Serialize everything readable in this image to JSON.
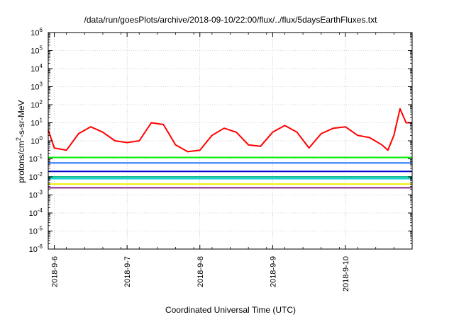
{
  "chart_data": {
    "type": "line",
    "title": "/data/run/goesPlots/archive/2018-09-10/22:00/flux/../flux/5daysEarthFluxes.txt",
    "xlabel": "Coordinated Universal Time (UTC)",
    "ylabel": {
      "base": "protons/cm",
      "sup": "2",
      "rest": "-s-sr-MeV"
    },
    "yscale": "log",
    "ylim": [
      1e-06,
      1000000.0
    ],
    "y_ticks": [
      {
        "v": 1000000.0,
        "exp": "6"
      },
      {
        "v": 100000.0,
        "exp": "5"
      },
      {
        "v": 10000.0,
        "exp": "4"
      },
      {
        "v": 1000.0,
        "exp": "3"
      },
      {
        "v": 100.0,
        "exp": "2"
      },
      {
        "v": 10.0,
        "exp": "1"
      },
      {
        "v": 1.0,
        "exp": "0"
      },
      {
        "v": 0.1,
        "exp": "-1"
      },
      {
        "v": 0.01,
        "exp": "-2"
      },
      {
        "v": 0.001,
        "exp": "-3"
      },
      {
        "v": 0.0001,
        "exp": "-4"
      },
      {
        "v": 1e-05,
        "exp": "-5"
      },
      {
        "v": 1e-06,
        "exp": "-6"
      }
    ],
    "y_tick_base": "10",
    "xlim": [
      "2018-09-05T22:00",
      "2018-09-10T22:00"
    ],
    "x_ticks": [
      {
        "t": "2018-09-06T00:00",
        "label": "2018-9-6"
      },
      {
        "t": "2018-09-07T00:00",
        "label": "2018-9-7"
      },
      {
        "t": "2018-09-08T00:00",
        "label": "2018-9-8"
      },
      {
        "t": "2018-09-09T00:00",
        "label": "2018-9-9"
      },
      {
        "t": "2018-09-10T00:00",
        "label": "2018-9-10"
      }
    ],
    "grid": true,
    "series": [
      {
        "color": "#ff0000",
        "x": [
          "2018-09-05T22:00",
          "2018-09-06T00:00",
          "2018-09-06T04:00",
          "2018-09-06T08:00",
          "2018-09-06T12:00",
          "2018-09-06T16:00",
          "2018-09-06T20:00",
          "2018-09-07T00:00",
          "2018-09-07T04:00",
          "2018-09-07T08:00",
          "2018-09-07T12:00",
          "2018-09-07T16:00",
          "2018-09-07T20:00",
          "2018-09-08T00:00",
          "2018-09-08T04:00",
          "2018-09-08T08:00",
          "2018-09-08T12:00",
          "2018-09-08T16:00",
          "2018-09-08T20:00",
          "2018-09-09T00:00",
          "2018-09-09T04:00",
          "2018-09-09T08:00",
          "2018-09-09T12:00",
          "2018-09-09T16:00",
          "2018-09-09T20:00",
          "2018-09-10T00:00",
          "2018-09-10T04:00",
          "2018-09-10T08:00",
          "2018-09-10T12:00",
          "2018-09-10T14:00",
          "2018-09-10T16:00",
          "2018-09-10T18:00",
          "2018-09-10T20:00",
          "2018-09-10T22:00"
        ],
        "y": [
          4.0,
          0.4,
          0.3,
          2.5,
          6.0,
          3.0,
          1.0,
          0.8,
          1.0,
          10.0,
          8.0,
          0.6,
          0.25,
          0.3,
          2.0,
          5.0,
          3.0,
          0.6,
          0.5,
          3.0,
          7.0,
          3.0,
          0.4,
          2.5,
          5.0,
          6.0,
          2.0,
          1.5,
          0.6,
          0.3,
          2.0,
          60.0,
          10.0,
          10.0
        ]
      },
      {
        "color": "#00ee00",
        "x": [
          "2018-09-05T22:00",
          "2018-09-10T22:00"
        ],
        "y": [
          0.12,
          0.12
        ]
      },
      {
        "color": "#2277ff",
        "x": [
          "2018-09-05T22:00",
          "2018-09-10T22:00"
        ],
        "y": [
          0.06,
          0.06
        ]
      },
      {
        "color": "#0000cc",
        "x": [
          "2018-09-05T22:00",
          "2018-09-10T22:00"
        ],
        "y": [
          0.02,
          0.02
        ]
      },
      {
        "color": "#00bb88",
        "x": [
          "2018-09-05T22:00",
          "2018-09-10T22:00"
        ],
        "y": [
          0.01,
          0.01
        ]
      },
      {
        "color": "#00cccc",
        "x": [
          "2018-09-05T22:00",
          "2018-09-10T22:00"
        ],
        "y": [
          0.008,
          0.008
        ]
      },
      {
        "color": "#eeee00",
        "x": [
          "2018-09-05T22:00",
          "2018-09-10T22:00"
        ],
        "y": [
          0.004,
          0.004
        ]
      },
      {
        "color": "#882288",
        "x": [
          "2018-09-05T22:00",
          "2018-09-10T22:00"
        ],
        "y": [
          0.0025,
          0.0025
        ]
      }
    ]
  }
}
